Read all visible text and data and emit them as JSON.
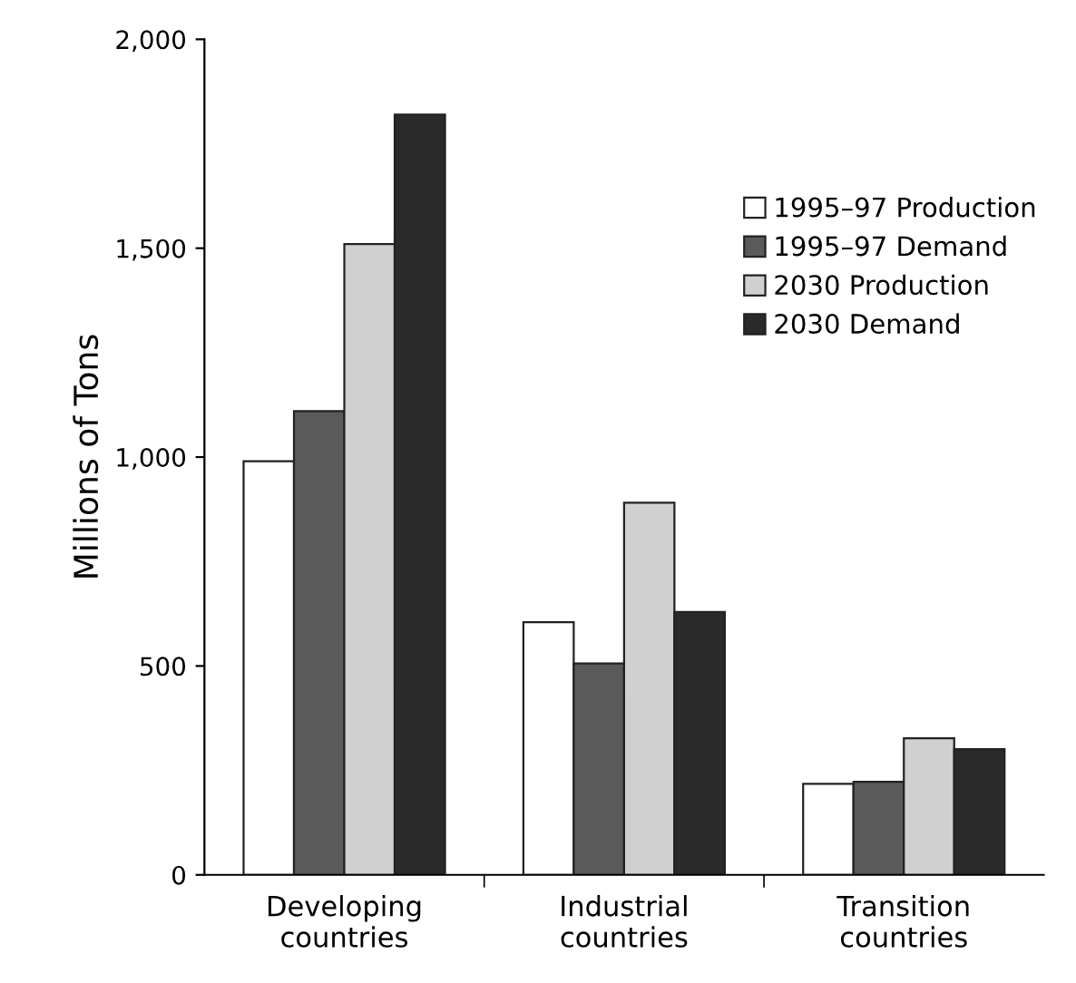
{
  "chart_data": {
    "type": "bar",
    "ylabel": "Millions of Tons",
    "categories": [
      "Developing\ncountries",
      "Industrial\ncountries",
      "Transition\ncountries"
    ],
    "series": [
      {
        "name": "1995–97 Production",
        "color": "#ffffff",
        "values": [
          990,
          605,
          218
        ]
      },
      {
        "name": "1995–97 Demand",
        "color": "#5a5a5a",
        "values": [
          1110,
          506,
          223
        ]
      },
      {
        "name": "2030 Production",
        "color": "#d0d0d0",
        "values": [
          1510,
          891,
          327
        ]
      },
      {
        "name": "2030 Demand",
        "color": "#2a2a2a",
        "values": [
          1820,
          629,
          301
        ]
      }
    ],
    "ylim": [
      0,
      2000
    ],
    "yticks": [
      0,
      500,
      {
        "value": 1000,
        "label": "1,000"
      },
      {
        "value": 1500,
        "label": "1,500"
      },
      {
        "value": 2000,
        "label": "2,000"
      }
    ],
    "grid": false,
    "legend": "top right"
  }
}
